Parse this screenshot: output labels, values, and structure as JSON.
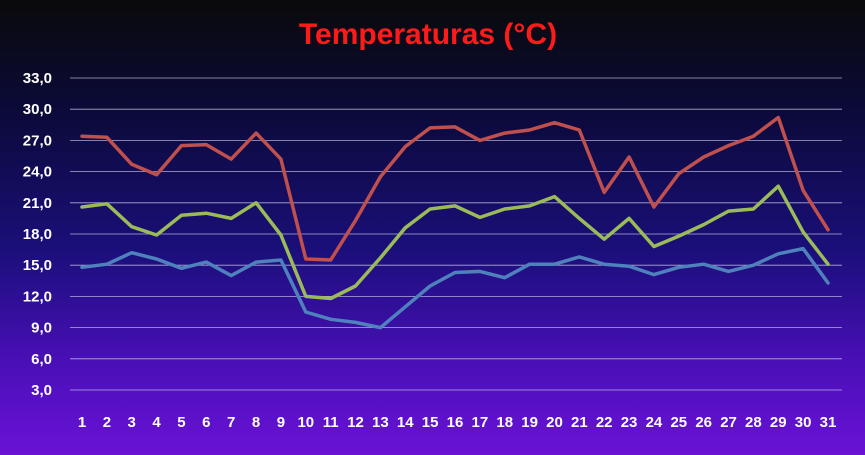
{
  "chart_data": {
    "type": "line",
    "title": "Temperaturas (°C)",
    "xlabel": "",
    "ylabel": "",
    "x": [
      "1",
      "2",
      "3",
      "4",
      "5",
      "6",
      "7",
      "8",
      "9",
      "10",
      "11",
      "12",
      "13",
      "14",
      "15",
      "16",
      "17",
      "18",
      "19",
      "20",
      "21",
      "22",
      "23",
      "24",
      "25",
      "26",
      "27",
      "28",
      "29",
      "30",
      "31"
    ],
    "ylim": [
      3.0,
      33.0
    ],
    "yticks": [
      "3,0",
      "6,0",
      "9,0",
      "12,0",
      "15,0",
      "18,0",
      "21,0",
      "24,0",
      "27,0",
      "30,0",
      "33,0"
    ],
    "ytick_values": [
      3,
      6,
      9,
      12,
      15,
      18,
      21,
      24,
      27,
      30,
      33
    ],
    "grid": true,
    "legend": "none",
    "series": [
      {
        "color": "#c0504d",
        "values": [
          27.4,
          27.3,
          24.7,
          23.7,
          26.5,
          26.6,
          25.2,
          27.7,
          25.2,
          15.6,
          15.5,
          19.3,
          23.5,
          26.4,
          28.2,
          28.3,
          27.0,
          27.7,
          28.0,
          28.7,
          28.0,
          22.0,
          25.4,
          20.6,
          23.8,
          25.4,
          26.5,
          27.4,
          29.2,
          22.2,
          18.4
        ]
      },
      {
        "color": "#9bbb59",
        "values": [
          20.6,
          20.9,
          18.7,
          17.9,
          19.8,
          20.0,
          19.5,
          21.0,
          17.9,
          12.0,
          11.8,
          13.0,
          15.7,
          18.6,
          20.4,
          20.7,
          19.6,
          20.4,
          20.7,
          21.6,
          19.5,
          17.5,
          19.5,
          16.8,
          17.8,
          18.9,
          20.2,
          20.4,
          22.6,
          18.2,
          15.1
        ]
      },
      {
        "color": "#4f81bd",
        "values": [
          14.8,
          15.1,
          16.2,
          15.6,
          14.7,
          15.3,
          14.0,
          15.3,
          15.5,
          10.5,
          9.8,
          9.5,
          9.0,
          11.0,
          13.0,
          14.3,
          14.4,
          13.8,
          15.1,
          15.1,
          15.8,
          15.1,
          14.9,
          14.1,
          14.8,
          15.1,
          14.4,
          15.0,
          16.1,
          16.6,
          13.3
        ]
      }
    ]
  }
}
